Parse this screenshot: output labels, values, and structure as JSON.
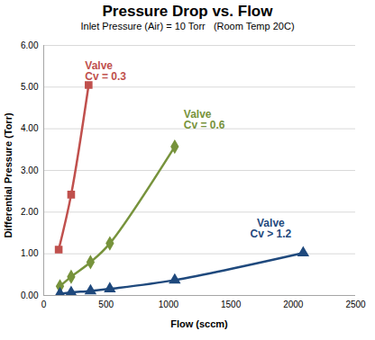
{
  "chart_data": {
    "type": "line",
    "title": "Pressure Drop vs. Flow",
    "subtitle": "Inlet Pressure (Air) = 10 Torr   (Room Temp 20C)",
    "x_label": "Flow (sccm)",
    "y_label": "Differential Pressure (Torr)",
    "xlim": [
      0,
      2500
    ],
    "xticks": [
      0,
      500,
      1000,
      1500,
      2000,
      2500
    ],
    "ylim": [
      0,
      6
    ],
    "yticks": [
      {
        "value": 0,
        "label": "0.00"
      },
      {
        "value": 1,
        "label": "1.00"
      },
      {
        "value": 2,
        "label": "2.00"
      },
      {
        "value": 3,
        "label": "3.00"
      },
      {
        "value": 4,
        "label": "4.00"
      },
      {
        "value": 5,
        "label": "5.00"
      },
      {
        "value": 6,
        "label": "6.00"
      }
    ],
    "grid": true,
    "series": [
      {
        "name": "Valve\nCv = 0.3",
        "color": "#c0504d",
        "marker": "square",
        "x": [
          120,
          220,
          360
        ],
        "values": [
          1.1,
          2.42,
          5.05
        ]
      },
      {
        "name": "Valve\nCv = 0.6",
        "color": "#77933c",
        "marker": "diamond",
        "x": [
          130,
          220,
          375,
          530,
          1050
        ],
        "values": [
          0.22,
          0.45,
          0.8,
          1.25,
          3.57
        ]
      },
      {
        "name": "Valve\nCv > 1.2",
        "color": "#1f497d",
        "marker": "triangle",
        "x": [
          130,
          220,
          375,
          530,
          1050,
          2080
        ],
        "values": [
          0.04,
          0.07,
          0.11,
          0.16,
          0.37,
          1.02
        ]
      }
    ]
  }
}
